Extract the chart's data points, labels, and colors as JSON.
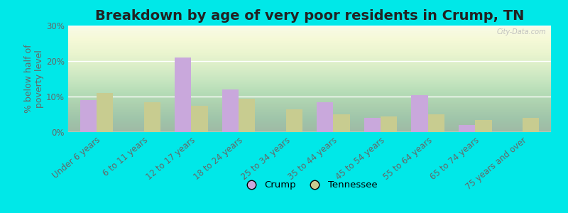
{
  "title": "Breakdown by age of very poor residents in Crump, TN",
  "ylabel": "% below half of\npoverty level",
  "categories": [
    "Under 6 years",
    "6 to 11 years",
    "12 to 17 years",
    "18 to 24 years",
    "25 to 34 years",
    "35 to 44 years",
    "45 to 54 years",
    "55 to 64 years",
    "65 to 74 years",
    "75 years and over"
  ],
  "crump_values": [
    9.0,
    0.0,
    21.0,
    12.0,
    0.0,
    8.5,
    4.0,
    10.5,
    2.0,
    0.0
  ],
  "tn_values": [
    11.0,
    8.5,
    7.5,
    9.5,
    6.5,
    5.0,
    4.5,
    5.0,
    3.5,
    4.0
  ],
  "crump_color": "#c9a8dc",
  "tn_color": "#c8cc90",
  "background_outer": "#00e8e8",
  "ylim": [
    0,
    30
  ],
  "yticks": [
    0,
    10,
    20,
    30
  ],
  "ytick_labels": [
    "0%",
    "10%",
    "20%",
    "30%"
  ],
  "bar_width": 0.35,
  "legend_labels": [
    "Crump",
    "Tennessee"
  ],
  "title_fontsize": 14,
  "axis_fontsize": 9,
  "tick_fontsize": 8.5
}
